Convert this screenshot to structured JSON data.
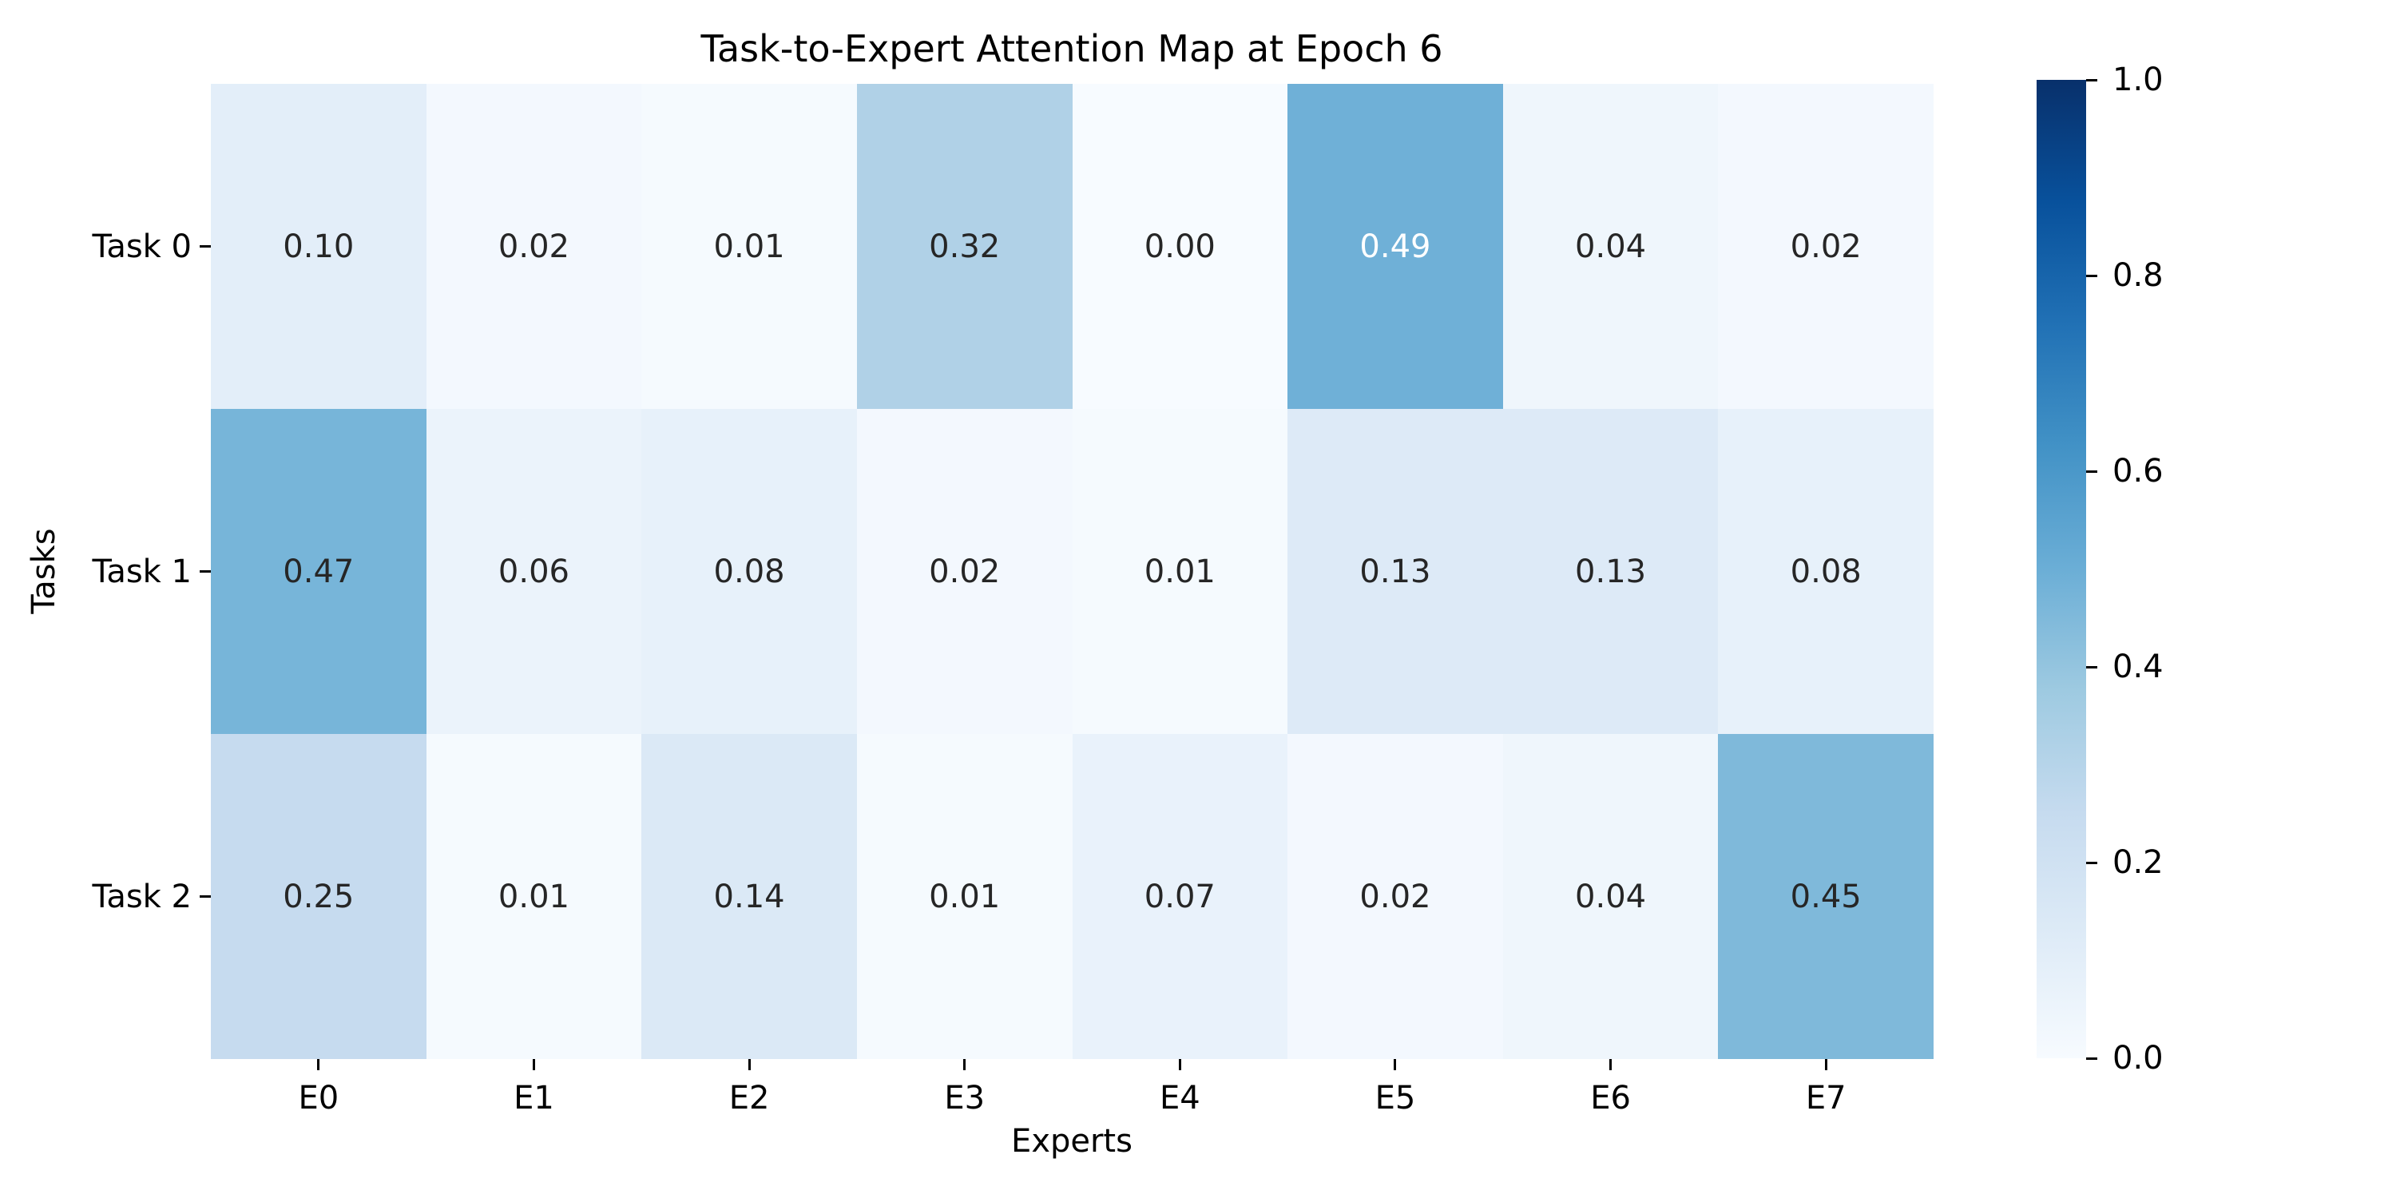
{
  "chart_data": {
    "type": "heatmap",
    "title": "Task-to-Expert Attention Map at Epoch 6",
    "xlabel": "Experts",
    "ylabel": "Tasks",
    "x_categories": [
      "E0",
      "E1",
      "E2",
      "E3",
      "E4",
      "E5",
      "E6",
      "E7"
    ],
    "y_categories": [
      "Task 0",
      "Task 1",
      "Task 2"
    ],
    "values": [
      [
        0.1,
        0.02,
        0.01,
        0.32,
        0.0,
        0.49,
        0.04,
        0.02
      ],
      [
        0.47,
        0.06,
        0.08,
        0.02,
        0.01,
        0.13,
        0.13,
        0.08
      ],
      [
        0.25,
        0.01,
        0.14,
        0.01,
        0.07,
        0.02,
        0.04,
        0.45
      ]
    ],
    "annotations": [
      [
        "0.10",
        "0.02",
        "0.01",
        "0.32",
        "0.00",
        "0.49",
        "0.04",
        "0.02"
      ],
      [
        "0.47",
        "0.06",
        "0.08",
        "0.02",
        "0.01",
        "0.13",
        "0.13",
        "0.08"
      ],
      [
        "0.25",
        "0.01",
        "0.14",
        "0.01",
        "0.07",
        "0.02",
        "0.04",
        "0.45"
      ]
    ],
    "vmin": 0.0,
    "vmax": 1.0,
    "grid": false,
    "legend_position": "colorbar-right",
    "colormap": {
      "name": "Blues",
      "stops": [
        "#f7fbff",
        "#deebf7",
        "#c6dbef",
        "#9ecae1",
        "#6baed6",
        "#4292c6",
        "#2171b5",
        "#08519c",
        "#08306b"
      ]
    },
    "colorbar_ticks": [
      "1.0",
      "0.8",
      "0.6",
      "0.4",
      "0.2",
      "0.0"
    ],
    "colorbar_tick_values": [
      1.0,
      0.8,
      0.6,
      0.4,
      0.2,
      0.0
    ],
    "light_text_cells": [
      [
        0,
        5
      ]
    ],
    "annot_color_dark": "#262626",
    "annot_color_light": "#ffffff"
  }
}
